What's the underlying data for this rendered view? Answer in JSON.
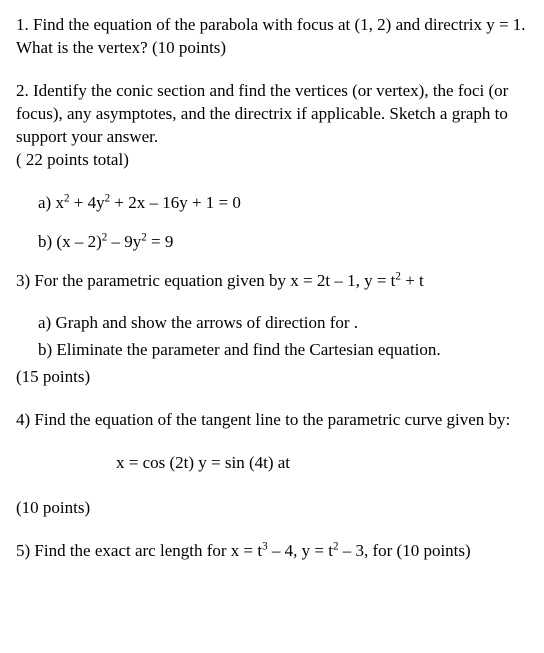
{
  "q1": "1. Find the equation of the parabola with  focus at (1, 2) and directrix y = 1.  What is the vertex?  (10 points)",
  "q2": "2.  Identify the conic section and find the vertices (or vertex), the foci (or focus), any asymptotes, and the directrix if applicable.  Sketch a graph to support your answer.",
  "q2_points": "( 22 points total)",
  "q2a_pre": "a) x",
  "q2a_mid1": " + 4y",
  "q2a_post": " + 2x – 16y + 1 = 0",
  "q2b_pre": "b) (x – 2)",
  "q2b_mid": " – 9y",
  "q2b_post": " = 9",
  "q3_pre": "3)  For the parametric equation given by  x = 2t – 1, y = t",
  "q3_post": " + t",
  "q3a": "a) Graph and show the arrows of direction for .",
  "q3b": "b) Eliminate the parameter and find the Cartesian equation.",
  "q3_points": "(15 points)",
  "q4": "4)  Find the equation of the tangent line to the parametric curve given by:",
  "q4_eq": "x = cos (2t)   y = sin (4t)   at",
  "q4_points": "(10 points)",
  "q5_pre": "5)  Find the exact arc length for x = t",
  "q5_mid": " – 4, y = t",
  "q5_post": " – 3, for   (10 points)",
  "sup2": "2",
  "sup3": "3"
}
